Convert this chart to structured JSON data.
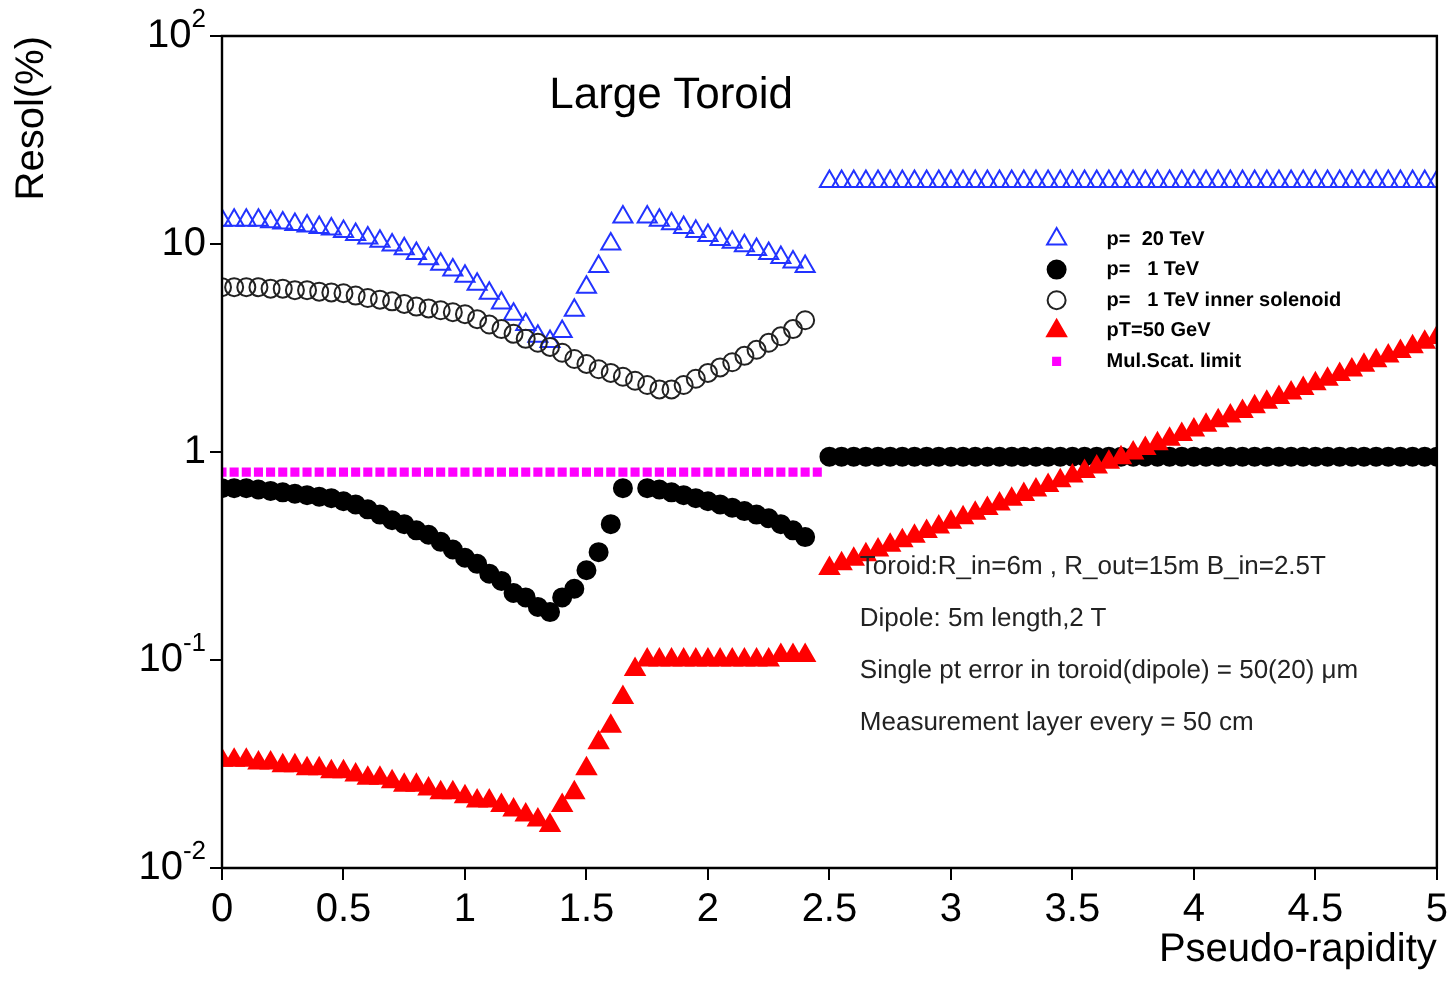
{
  "chart_data": {
    "type": "scatter",
    "title": "Large Toroid",
    "xlabel": "Pseudo-rapidity",
    "ylabel": "Resol(%)",
    "log": "y",
    "legend": "right",
    "xlim": [
      0,
      5
    ],
    "xticks": [
      0,
      0.5,
      1,
      1.5,
      2,
      2.5,
      3,
      3.5,
      4,
      4.5,
      5
    ],
    "ylim": [
      0.01,
      100
    ],
    "yticks": [
      {
        "value": 0.01,
        "label": "10$^{-2}$"
      },
      {
        "value": 0.1,
        "label": "10$^{-1}$"
      },
      1,
      10,
      {
        "value": 100,
        "label": "10$^{2}$"
      }
    ],
    "annotations": [
      "Toroid:R_in=6m , R_out=15m B_in=2.5T",
      "Dipole: 5m length,2 T",
      "Single pt error in toroid(dipole) = 50(20) μm",
      "Measurement layer every = 50 cm"
    ],
    "series": [
      {
        "name": "p=  20 TeV",
        "color": "#2233ff",
        "marker": "triangle",
        "x": [
          0,
          0.05,
          0.1,
          0.15,
          0.2,
          0.25,
          0.3,
          0.35,
          0.4,
          0.45,
          0.5,
          0.55,
          0.6,
          0.65,
          0.7,
          0.75,
          0.8,
          0.85,
          0.9,
          0.95,
          1,
          1.05,
          1.1,
          1.15,
          1.2,
          1.25,
          1.3,
          1.35,
          1.4,
          1.45,
          1.5,
          1.55,
          1.6,
          1.65,
          1.75,
          1.8,
          1.85,
          1.9,
          1.95,
          2,
          2.05,
          2.1,
          2.15,
          2.2,
          2.25,
          2.3,
          2.35,
          2.4,
          2.5,
          2.55,
          2.6,
          2.65,
          2.7,
          2.75,
          2.8,
          2.85,
          2.9,
          2.95,
          3,
          3.05,
          3.1,
          3.15,
          3.2,
          3.25,
          3.3,
          3.35,
          3.4,
          3.45,
          3.5,
          3.55,
          3.6,
          3.65,
          3.7,
          3.75,
          3.8,
          3.85,
          3.9,
          3.95,
          4,
          4.05,
          4.1,
          4.15,
          4.2,
          4.25,
          4.3,
          4.35,
          4.4,
          4.45,
          4.5,
          4.55,
          4.6,
          4.65,
          4.7,
          4.75,
          4.8,
          4.85,
          4.9,
          4.95,
          5
        ],
        "values": [
          13,
          13,
          13,
          13,
          12.8,
          12.6,
          12.4,
          12.2,
          12,
          11.8,
          11.5,
          11.1,
          10.7,
          10.3,
          9.9,
          9.5,
          9,
          8.5,
          8,
          7.5,
          7,
          6.4,
          5.8,
          5.2,
          4.6,
          4.1,
          3.6,
          3.4,
          3.8,
          4.8,
          6.2,
          7.8,
          10,
          13.5,
          13.5,
          13,
          12.5,
          12,
          11.5,
          11,
          10.5,
          10.2,
          9.8,
          9.4,
          9,
          8.6,
          8.2,
          7.8,
          20,
          20,
          20,
          20,
          20,
          20,
          20,
          20,
          20,
          20,
          20,
          20,
          20,
          20,
          20,
          20,
          20,
          20,
          20,
          20,
          20,
          20,
          20,
          20,
          20,
          20,
          20,
          20,
          20,
          20,
          20,
          20,
          20,
          20,
          20,
          20,
          20,
          20,
          20,
          20,
          20,
          20,
          20,
          20,
          20,
          20,
          20,
          20,
          20,
          20,
          20
        ]
      },
      {
        "name": "p=   1 TeV",
        "color": "#000000",
        "marker": "circle",
        "x": [
          0,
          0.05,
          0.1,
          0.15,
          0.2,
          0.25,
          0.3,
          0.35,
          0.4,
          0.45,
          0.5,
          0.55,
          0.6,
          0.65,
          0.7,
          0.75,
          0.8,
          0.85,
          0.9,
          0.95,
          1,
          1.05,
          1.1,
          1.15,
          1.2,
          1.25,
          1.3,
          1.35,
          1.4,
          1.45,
          1.5,
          1.55,
          1.6,
          1.65,
          1.75,
          1.8,
          1.85,
          1.9,
          1.95,
          2,
          2.05,
          2.1,
          2.15,
          2.2,
          2.25,
          2.3,
          2.35,
          2.4,
          2.5,
          2.55,
          2.6,
          2.65,
          2.7,
          2.75,
          2.8,
          2.85,
          2.9,
          2.95,
          3,
          3.05,
          3.1,
          3.15,
          3.2,
          3.25,
          3.3,
          3.35,
          3.4,
          3.45,
          3.5,
          3.55,
          3.6,
          3.65,
          3.7,
          3.75,
          3.8,
          3.85,
          3.9,
          3.95,
          4,
          4.05,
          4.1,
          4.15,
          4.2,
          4.25,
          4.3,
          4.35,
          4.4,
          4.45,
          4.5,
          4.55,
          4.6,
          4.65,
          4.7,
          4.75,
          4.8,
          4.85,
          4.9,
          4.95,
          5
        ],
        "values": [
          0.67,
          0.67,
          0.67,
          0.66,
          0.65,
          0.64,
          0.63,
          0.62,
          0.61,
          0.6,
          0.58,
          0.56,
          0.53,
          0.5,
          0.47,
          0.45,
          0.42,
          0.4,
          0.37,
          0.34,
          0.31,
          0.29,
          0.26,
          0.24,
          0.21,
          0.2,
          0.18,
          0.17,
          0.2,
          0.22,
          0.27,
          0.33,
          0.45,
          0.67,
          0.67,
          0.66,
          0.64,
          0.62,
          0.6,
          0.58,
          0.56,
          0.54,
          0.52,
          0.5,
          0.48,
          0.45,
          0.42,
          0.39,
          0.95,
          0.95,
          0.95,
          0.95,
          0.95,
          0.95,
          0.95,
          0.95,
          0.95,
          0.95,
          0.95,
          0.95,
          0.95,
          0.95,
          0.95,
          0.95,
          0.95,
          0.95,
          0.95,
          0.95,
          0.95,
          0.95,
          0.95,
          0.95,
          0.95,
          0.95,
          0.95,
          0.95,
          0.95,
          0.95,
          0.95,
          0.95,
          0.95,
          0.95,
          0.95,
          0.95,
          0.95,
          0.95,
          0.95,
          0.95,
          0.95,
          0.95,
          0.95,
          0.95,
          0.95,
          0.95,
          0.95,
          0.95,
          0.95,
          0.95,
          0.95
        ]
      },
      {
        "name": "p=   1 TeV inner solenoid",
        "color": "#222222",
        "marker": "circle",
        "x": [
          0,
          0.05,
          0.1,
          0.15,
          0.2,
          0.25,
          0.3,
          0.35,
          0.4,
          0.45,
          0.5,
          0.55,
          0.6,
          0.65,
          0.7,
          0.75,
          0.8,
          0.85,
          0.9,
          0.95,
          1,
          1.05,
          1.1,
          1.15,
          1.2,
          1.25,
          1.3,
          1.35,
          1.4,
          1.45,
          1.5,
          1.55,
          1.6,
          1.65,
          1.7,
          1.75,
          1.8,
          1.85,
          1.9,
          1.95,
          2,
          2.05,
          2.1,
          2.15,
          2.2,
          2.25,
          2.3,
          2.35,
          2.4
        ],
        "values": [
          6.2,
          6.2,
          6.2,
          6.2,
          6.1,
          6.1,
          6,
          6,
          5.9,
          5.85,
          5.8,
          5.65,
          5.5,
          5.4,
          5.3,
          5.15,
          5,
          4.9,
          4.8,
          4.7,
          4.6,
          4.35,
          4.1,
          3.9,
          3.7,
          3.5,
          3.35,
          3.2,
          3,
          2.8,
          2.65,
          2.5,
          2.4,
          2.3,
          2.2,
          2.1,
          2,
          2,
          2.1,
          2.25,
          2.4,
          2.55,
          2.7,
          2.9,
          3.1,
          3.35,
          3.6,
          3.9,
          4.3
        ]
      },
      {
        "name": "pT=50 GeV",
        "color": "#ff0000",
        "marker": "triangle",
        "x": [
          0,
          0.05,
          0.1,
          0.15,
          0.2,
          0.25,
          0.3,
          0.35,
          0.4,
          0.45,
          0.5,
          0.55,
          0.6,
          0.65,
          0.7,
          0.75,
          0.8,
          0.85,
          0.9,
          0.95,
          1,
          1.05,
          1.1,
          1.15,
          1.2,
          1.25,
          1.3,
          1.35,
          1.4,
          1.45,
          1.5,
          1.55,
          1.6,
          1.65,
          1.7,
          1.75,
          1.8,
          1.85,
          1.9,
          1.95,
          2,
          2.05,
          2.1,
          2.15,
          2.2,
          2.25,
          2.3,
          2.35,
          2.4,
          2.5,
          2.55,
          2.6,
          2.65,
          2.7,
          2.75,
          2.8,
          2.85,
          2.9,
          2.95,
          3,
          3.05,
          3.1,
          3.15,
          3.2,
          3.25,
          3.3,
          3.35,
          3.4,
          3.45,
          3.5,
          3.55,
          3.6,
          3.65,
          3.7,
          3.75,
          3.8,
          3.85,
          3.9,
          3.95,
          4,
          4.05,
          4.1,
          4.15,
          4.2,
          4.25,
          4.3,
          4.35,
          4.4,
          4.45,
          4.5,
          4.55,
          4.6,
          4.65,
          4.7,
          4.75,
          4.8,
          4.85,
          4.9,
          4.95,
          5
        ],
        "values": [
          0.033,
          0.033,
          0.033,
          0.032,
          0.032,
          0.031,
          0.031,
          0.03,
          0.03,
          0.029,
          0.029,
          0.028,
          0.027,
          0.027,
          0.026,
          0.025,
          0.025,
          0.024,
          0.023,
          0.023,
          0.022,
          0.021,
          0.021,
          0.02,
          0.019,
          0.018,
          0.017,
          0.016,
          0.02,
          0.023,
          0.03,
          0.04,
          0.048,
          0.066,
          0.09,
          0.1,
          0.1,
          0.1,
          0.1,
          0.1,
          0.1,
          0.1,
          0.1,
          0.1,
          0.1,
          0.1,
          0.105,
          0.105,
          0.105,
          0.275,
          0.29,
          0.305,
          0.321,
          0.338,
          0.356,
          0.374,
          0.394,
          0.415,
          0.436,
          0.459,
          0.483,
          0.508,
          0.535,
          0.563,
          0.593,
          0.624,
          0.657,
          0.691,
          0.727,
          0.766,
          0.806,
          0.848,
          0.893,
          0.939,
          0.989,
          1.04,
          1.095,
          1.152,
          1.213,
          1.276,
          1.343,
          1.414,
          1.488,
          1.566,
          1.648,
          1.735,
          1.826,
          1.921,
          2.022,
          2.128,
          2.239,
          2.357,
          2.481,
          2.611,
          2.748,
          2.892,
          3.044,
          3.203,
          3.371,
          3.548
        ]
      },
      {
        "name": "Mul.Scat. limit",
        "color": "#ff00ff",
        "marker": "square",
        "x": [
          0,
          0.05,
          0.1,
          0.15,
          0.2,
          0.25,
          0.3,
          0.35,
          0.4,
          0.45,
          0.5,
          0.55,
          0.6,
          0.65,
          0.7,
          0.75,
          0.8,
          0.85,
          0.9,
          0.95,
          1,
          1.05,
          1.1,
          1.15,
          1.2,
          1.25,
          1.3,
          1.35,
          1.4,
          1.45,
          1.5,
          1.55,
          1.6,
          1.65,
          1.7,
          1.75,
          1.8,
          1.85,
          1.9,
          1.95,
          2,
          2.05,
          2.1,
          2.15,
          2.2,
          2.25,
          2.3,
          2.35,
          2.4,
          2.45
        ],
        "values": [
          0.8,
          0.8,
          0.8,
          0.8,
          0.8,
          0.8,
          0.8,
          0.8,
          0.8,
          0.8,
          0.8,
          0.8,
          0.8,
          0.8,
          0.8,
          0.8,
          0.8,
          0.8,
          0.8,
          0.8,
          0.8,
          0.8,
          0.8,
          0.8,
          0.8,
          0.8,
          0.8,
          0.8,
          0.8,
          0.8,
          0.8,
          0.8,
          0.8,
          0.8,
          0.8,
          0.8,
          0.8,
          0.8,
          0.8,
          0.8,
          0.8,
          0.8,
          0.8,
          0.8,
          0.8,
          0.8,
          0.8,
          0.8,
          0.8,
          0.8
        ]
      }
    ]
  }
}
